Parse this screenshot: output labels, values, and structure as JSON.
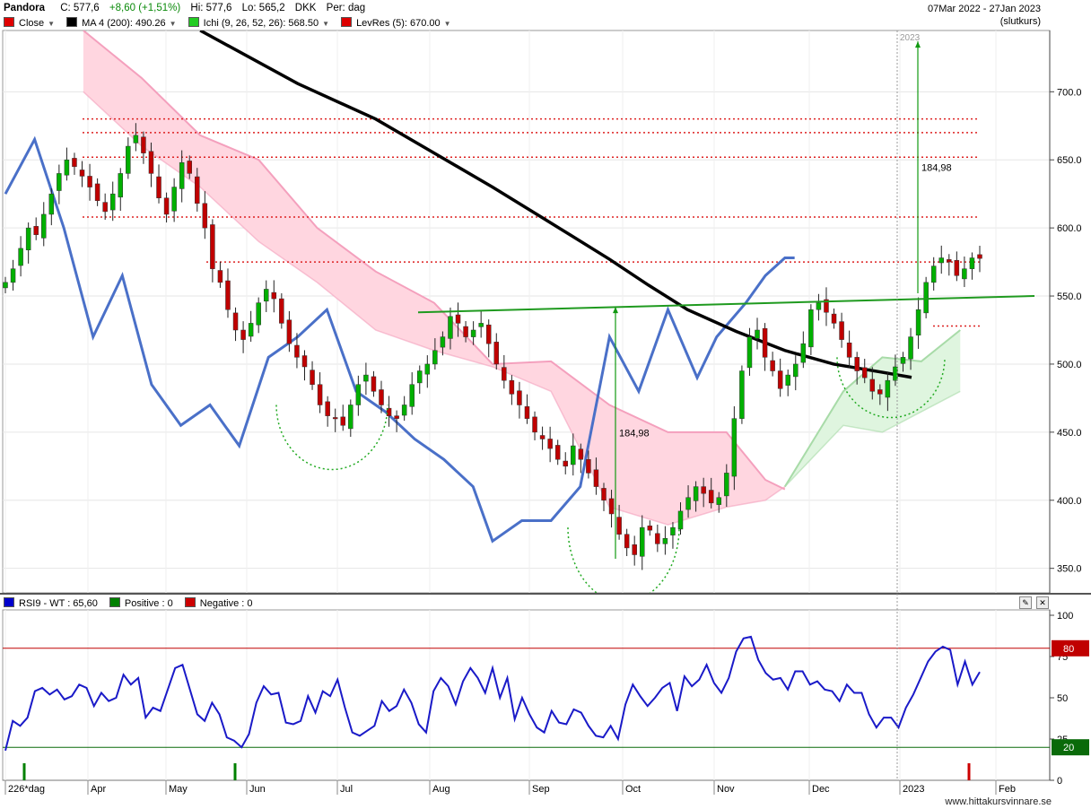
{
  "header": {
    "symbol": "Pandora",
    "close": "C: 577,6",
    "change": "+8,60 (+1,51%)",
    "high": "Hi: 577,6",
    "low": "Lo: 565,2",
    "currency": "DKK",
    "period": "Per: dag",
    "date_range": "07Mar 2022 - 27Jan 2023",
    "price_note": "(slutkurs)"
  },
  "legend": [
    {
      "label": "Close",
      "color": "#e00000"
    },
    {
      "label": "MA 4 (200): 490.26",
      "color": "#000000"
    },
    {
      "label": "Ichi (9, 26, 52, 26): 568.50",
      "color": "#22cc22"
    },
    {
      "label": "LevRes (5): 670.00",
      "color": "#dd0000"
    }
  ],
  "rsi_legend": [
    {
      "label": "RSI9 - WT : 65,60",
      "color": "#0000cc"
    },
    {
      "label": "Positive : 0",
      "color": "#008000"
    },
    {
      "label": "Negative : 0",
      "color": "#cc0000"
    }
  ],
  "colors": {
    "candle_up": "#00b000",
    "candle_down": "#c00000",
    "ma": "#000000",
    "rs_line": "#4a70c8",
    "cloud_red": "#ffd6e0",
    "cloud_green": "#dff5df",
    "rsi_line": "#1a1ac8",
    "level_80": "#c00000",
    "level_20": "#0a6a0a",
    "trendline": "#1f9a1f"
  },
  "annotations": {
    "target_left": "184,98",
    "target_right": "184,98",
    "year_marker": "2023"
  },
  "footer": {
    "site": "www.hittakursvinnare.se"
  },
  "chart_data": [
    {
      "type": "candlestick",
      "title": "Pandora",
      "xlabel": "",
      "ylabel": "",
      "x_tick_labels": [
        "226*dag",
        "Apr",
        "May",
        "Jun",
        "Jul",
        "Aug",
        "Sep",
        "Oct",
        "Nov",
        "Dec",
        "2023",
        "Feb"
      ],
      "ylim": [
        332,
        745
      ],
      "y_ticks": [
        350,
        400,
        450,
        500,
        550,
        600,
        650,
        700
      ],
      "y_tick_labels": [
        "350.0",
        "400.0",
        "450.0",
        "500.0",
        "550.0",
        "600.0",
        "650.0",
        "700.0"
      ],
      "grid": true,
      "resistance_levels": [
        680,
        670,
        652,
        608,
        575,
        528
      ],
      "series": [
        {
          "name": "MA 4 (200): 490.26",
          "points": [
            [
              0.2,
              745
            ],
            [
              0.3,
              706
            ],
            [
              0.38,
              680
            ],
            [
              0.44,
              655
            ],
            [
              0.5,
              630
            ],
            [
              0.55,
              608
            ],
            [
              0.62,
              577
            ],
            [
              0.66,
              558
            ],
            [
              0.7,
              540
            ],
            [
              0.75,
              524
            ],
            [
              0.8,
              510
            ],
            [
              0.85,
              500
            ],
            [
              0.9,
              494
            ],
            [
              0.93,
              490.26
            ]
          ]
        },
        {
          "name": "Close",
          "closes": [
            560,
            570,
            585,
            600,
            595,
            610,
            625,
            640,
            650,
            645,
            638,
            630,
            620,
            612,
            625,
            640,
            660,
            668,
            655,
            640,
            622,
            610,
            630,
            648,
            640,
            618,
            600,
            570,
            560,
            540,
            525,
            518,
            530,
            545,
            555,
            548,
            530,
            515,
            505,
            498,
            485,
            470,
            462,
            460,
            455,
            470,
            485,
            492,
            480,
            470,
            462,
            460,
            470,
            485,
            495,
            500,
            510,
            520,
            535,
            530,
            520,
            525,
            530,
            515,
            500,
            488,
            478,
            470,
            460,
            450,
            445,
            438,
            430,
            425,
            440,
            430,
            420,
            410,
            400,
            390,
            375,
            365,
            360,
            380,
            378,
            368,
            372,
            380,
            392,
            402,
            410,
            405,
            398,
            402,
            420,
            460,
            495,
            520,
            525,
            505,
            495,
            482,
            492,
            500,
            515,
            540,
            545,
            538,
            530,
            518,
            505,
            495,
            490,
            480,
            478,
            488,
            498,
            505,
            520,
            540,
            560,
            572,
            578,
            575,
            565,
            570,
            578,
            577.6
          ]
        },
        {
          "name": "RS line",
          "points": [
            [
              0,
              625
            ],
            [
              0.03,
              665
            ],
            [
              0.06,
              600
            ],
            [
              0.09,
              520
            ],
            [
              0.12,
              565
            ],
            [
              0.15,
              485
            ],
            [
              0.18,
              455
            ],
            [
              0.21,
              470
            ],
            [
              0.24,
              440
            ],
            [
              0.27,
              505
            ],
            [
              0.3,
              520
            ],
            [
              0.33,
              540
            ],
            [
              0.36,
              480
            ],
            [
              0.39,
              465
            ],
            [
              0.42,
              445
            ],
            [
              0.45,
              430
            ],
            [
              0.48,
              410
            ],
            [
              0.5,
              370
            ],
            [
              0.53,
              385
            ],
            [
              0.56,
              385
            ],
            [
              0.59,
              410
            ],
            [
              0.62,
              520
            ],
            [
              0.65,
              480
            ],
            [
              0.68,
              540
            ],
            [
              0.71,
              490
            ],
            [
              0.73,
              520
            ],
            [
              0.76,
              545
            ],
            [
              0.78,
              565
            ],
            [
              0.8,
              578
            ],
            [
              0.81,
              578
            ]
          ]
        },
        {
          "name": "Ichimoku cloud (red)",
          "upper": [
            [
              0.08,
              745
            ],
            [
              0.14,
              710
            ],
            [
              0.2,
              668
            ],
            [
              0.26,
              650
            ],
            [
              0.32,
              600
            ],
            [
              0.38,
              568
            ],
            [
              0.44,
              545
            ],
            [
              0.5,
              500
            ],
            [
              0.56,
              502
            ],
            [
              0.62,
              470
            ],
            [
              0.68,
              450
            ],
            [
              0.74,
              450
            ],
            [
              0.78,
              415
            ],
            [
              0.8,
              408
            ]
          ],
          "lower": [
            [
              0.08,
              700
            ],
            [
              0.14,
              660
            ],
            [
              0.2,
              630
            ],
            [
              0.26,
              590
            ],
            [
              0.32,
              560
            ],
            [
              0.38,
              525
            ],
            [
              0.44,
              510
            ],
            [
              0.5,
              498
            ],
            [
              0.56,
              480
            ],
            [
              0.62,
              395
            ],
            [
              0.68,
              382
            ],
            [
              0.74,
              395
            ],
            [
              0.78,
              400
            ],
            [
              0.8,
              410
            ]
          ]
        },
        {
          "name": "Ichimoku cloud (green)",
          "upper": [
            [
              0.8,
              410
            ],
            [
              0.86,
              480
            ],
            [
              0.9,
              505
            ],
            [
              0.94,
              502
            ],
            [
              0.98,
              525
            ]
          ],
          "lower": [
            [
              0.8,
              410
            ],
            [
              0.86,
              455
            ],
            [
              0.9,
              450
            ],
            [
              0.94,
              465
            ],
            [
              0.98,
              480
            ]
          ]
        }
      ]
    },
    {
      "type": "line",
      "title": "RSI9 - WT",
      "ylim": [
        0,
        100
      ],
      "y_ticks": [
        0,
        25,
        50,
        75,
        100
      ],
      "y_tick_labels": [
        "0",
        "25",
        "50",
        "75",
        "100"
      ],
      "levels": [
        {
          "value": 80,
          "label": "80"
        },
        {
          "value": 20,
          "label": "20"
        }
      ],
      "series": [
        {
          "name": "RSI9 - WT : 65,60",
          "values": [
            18,
            36,
            33,
            38,
            54,
            56,
            52,
            55,
            49,
            51,
            58,
            56,
            45,
            53,
            48,
            50,
            64,
            58,
            62,
            38,
            44,
            42,
            55,
            68,
            70,
            55,
            40,
            36,
            47,
            40,
            26,
            24,
            20,
            28,
            47,
            57,
            52,
            53,
            35,
            34,
            36,
            51,
            41,
            54,
            51,
            61,
            44,
            29,
            27,
            30,
            33,
            48,
            42,
            45,
            55,
            47,
            34,
            29,
            54,
            62,
            57,
            46,
            60,
            68,
            62,
            53,
            68,
            50,
            62,
            37,
            50,
            40,
            32,
            29,
            42,
            35,
            34,
            43,
            41,
            33,
            27,
            26,
            33,
            25,
            46,
            58,
            51,
            45,
            50,
            56,
            59,
            42,
            63,
            57,
            61,
            70,
            59,
            53,
            62,
            78,
            86,
            87,
            73,
            65,
            61,
            62,
            55,
            66,
            66,
            58,
            60,
            55,
            54,
            48,
            58,
            53,
            53,
            40,
            32,
            38,
            38,
            32,
            44,
            52,
            62,
            72,
            78,
            81,
            79,
            58,
            72,
            58,
            65.6
          ]
        }
      ]
    }
  ]
}
